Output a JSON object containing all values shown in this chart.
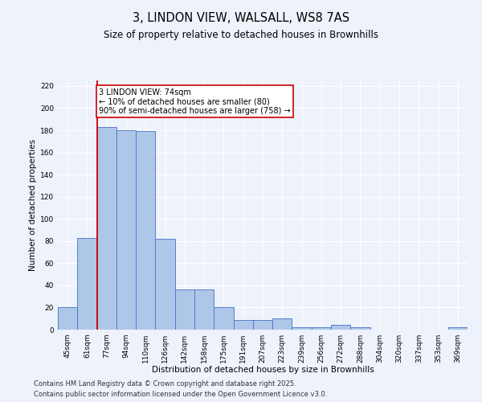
{
  "title": "3, LINDON VIEW, WALSALL, WS8 7AS",
  "subtitle": "Size of property relative to detached houses in Brownhills",
  "xlabel": "Distribution of detached houses by size in Brownhills",
  "ylabel": "Number of detached properties",
  "categories": [
    "45sqm",
    "61sqm",
    "77sqm",
    "94sqm",
    "110sqm",
    "126sqm",
    "142sqm",
    "158sqm",
    "175sqm",
    "191sqm",
    "207sqm",
    "223sqm",
    "239sqm",
    "256sqm",
    "272sqm",
    "288sqm",
    "304sqm",
    "320sqm",
    "337sqm",
    "353sqm",
    "369sqm"
  ],
  "values": [
    20,
    83,
    183,
    180,
    179,
    82,
    36,
    36,
    20,
    9,
    9,
    10,
    2,
    2,
    4,
    2,
    0,
    0,
    0,
    0,
    2
  ],
  "bar_color": "#aec6e8",
  "bar_edge_color": "#4472c4",
  "vline_color": "#cc0000",
  "annotation_text": "3 LINDON VIEW: 74sqm\n← 10% of detached houses are smaller (80)\n90% of semi-detached houses are larger (758) →",
  "annotation_box_color": "#ffffff",
  "annotation_box_edge": "#cc0000",
  "ylim": [
    0,
    225
  ],
  "yticks": [
    0,
    20,
    40,
    60,
    80,
    100,
    120,
    140,
    160,
    180,
    200,
    220
  ],
  "footer_line1": "Contains HM Land Registry data © Crown copyright and database right 2025.",
  "footer_line2": "Contains public sector information licensed under the Open Government Licence v3.0.",
  "bg_color": "#eef2fb",
  "grid_color": "#ffffff",
  "title_fontsize": 10.5,
  "subtitle_fontsize": 8.5,
  "axis_label_fontsize": 7.5,
  "tick_fontsize": 6.5,
  "footer_fontsize": 6.0,
  "annotation_fontsize": 7.0
}
